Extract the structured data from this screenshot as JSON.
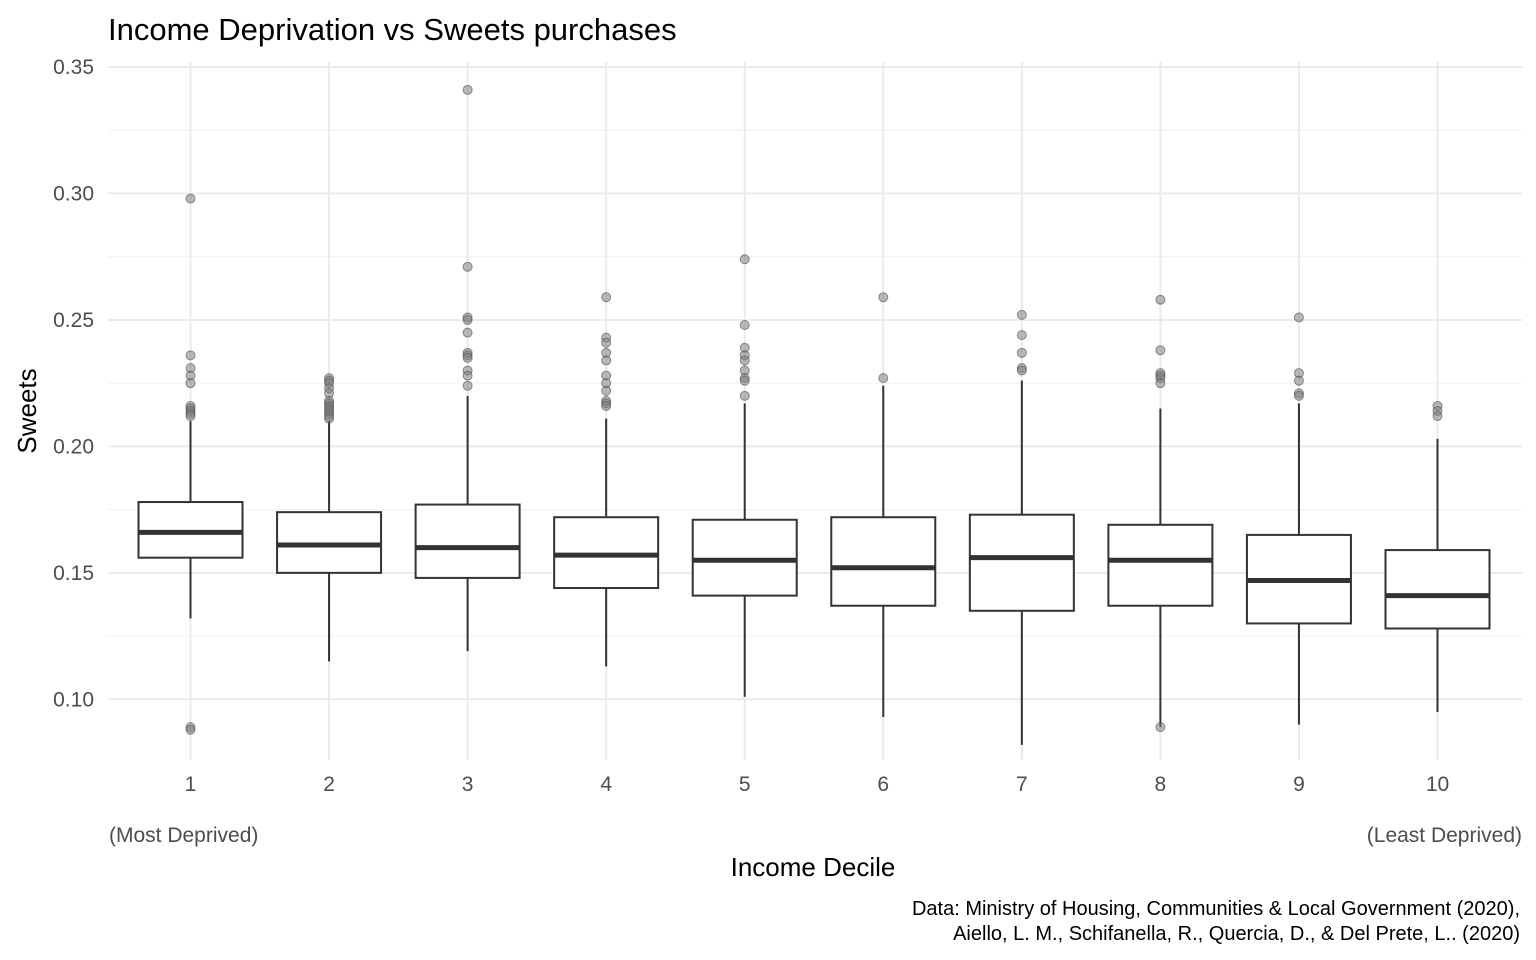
{
  "chart_data": {
    "type": "boxplot",
    "title": "Income Deprivation vs Sweets purchases",
    "xlabel": "Income Decile",
    "ylabel": "Sweets",
    "x_note_left": "(Most Deprived)",
    "x_note_right": "(Least Deprived)",
    "caption_lines": [
      "Data: Ministry of Housing, Communities & Local Government (2020),",
      "Aiello, L. M., Schifanella, R., Quercia, D., & Del Prete, L.. (2020)"
    ],
    "categories": [
      "1",
      "2",
      "3",
      "4",
      "5",
      "6",
      "7",
      "8",
      "9",
      "10"
    ],
    "ylim": [
      0.076,
      0.352
    ],
    "y_ticks": [
      "0.10",
      "0.15",
      "0.20",
      "0.25",
      "0.30",
      "0.35"
    ],
    "grid": true,
    "boxes": [
      {
        "category": "1",
        "whisker_low": 0.132,
        "q1": 0.156,
        "median": 0.166,
        "q3": 0.178,
        "whisker_high": 0.21,
        "outliers": [
          0.298,
          0.236,
          0.231,
          0.228,
          0.225,
          0.216,
          0.215,
          0.214,
          0.213,
          0.212,
          0.089,
          0.088
        ]
      },
      {
        "category": "2",
        "whisker_low": 0.115,
        "q1": 0.15,
        "median": 0.161,
        "q3": 0.174,
        "whisker_high": 0.21,
        "outliers": [
          0.227,
          0.226,
          0.225,
          0.223,
          0.221,
          0.218,
          0.217,
          0.216,
          0.215,
          0.214,
          0.213,
          0.212,
          0.211
        ]
      },
      {
        "category": "3",
        "whisker_low": 0.119,
        "q1": 0.148,
        "median": 0.16,
        "q3": 0.177,
        "whisker_high": 0.22,
        "outliers": [
          0.341,
          0.271,
          0.251,
          0.25,
          0.245,
          0.237,
          0.236,
          0.235,
          0.23,
          0.228,
          0.224
        ]
      },
      {
        "category": "4",
        "whisker_low": 0.113,
        "q1": 0.144,
        "median": 0.157,
        "q3": 0.172,
        "whisker_high": 0.211,
        "outliers": [
          0.259,
          0.243,
          0.241,
          0.237,
          0.234,
          0.228,
          0.225,
          0.222,
          0.218,
          0.217,
          0.216
        ]
      },
      {
        "category": "5",
        "whisker_low": 0.101,
        "q1": 0.141,
        "median": 0.155,
        "q3": 0.171,
        "whisker_high": 0.217,
        "outliers": [
          0.274,
          0.248,
          0.239,
          0.236,
          0.234,
          0.23,
          0.227,
          0.226,
          0.22
        ]
      },
      {
        "category": "6",
        "whisker_low": 0.093,
        "q1": 0.137,
        "median": 0.152,
        "q3": 0.172,
        "whisker_high": 0.224,
        "outliers": [
          0.259,
          0.227
        ]
      },
      {
        "category": "7",
        "whisker_low": 0.082,
        "q1": 0.135,
        "median": 0.156,
        "q3": 0.173,
        "whisker_high": 0.226,
        "outliers": [
          0.252,
          0.244,
          0.237,
          0.231,
          0.23
        ]
      },
      {
        "category": "8",
        "whisker_low": 0.089,
        "q1": 0.137,
        "median": 0.155,
        "q3": 0.169,
        "whisker_high": 0.215,
        "outliers": [
          0.258,
          0.238,
          0.229,
          0.228,
          0.227,
          0.225,
          0.089
        ]
      },
      {
        "category": "9",
        "whisker_low": 0.09,
        "q1": 0.13,
        "median": 0.147,
        "q3": 0.165,
        "whisker_high": 0.217,
        "outliers": [
          0.251,
          0.229,
          0.226,
          0.221,
          0.22
        ]
      },
      {
        "category": "10",
        "whisker_low": 0.095,
        "q1": 0.128,
        "median": 0.141,
        "q3": 0.159,
        "whisker_high": 0.203,
        "outliers": [
          0.216,
          0.214,
          0.212
        ]
      }
    ],
    "colors": {
      "box_line": "#333333",
      "median_line": "#333333",
      "outlier_fill": "#808080",
      "outlier_stroke": "#4d4d4d",
      "grid_major": "#ebebeb",
      "grid_minor": "#f3f3f3"
    }
  }
}
